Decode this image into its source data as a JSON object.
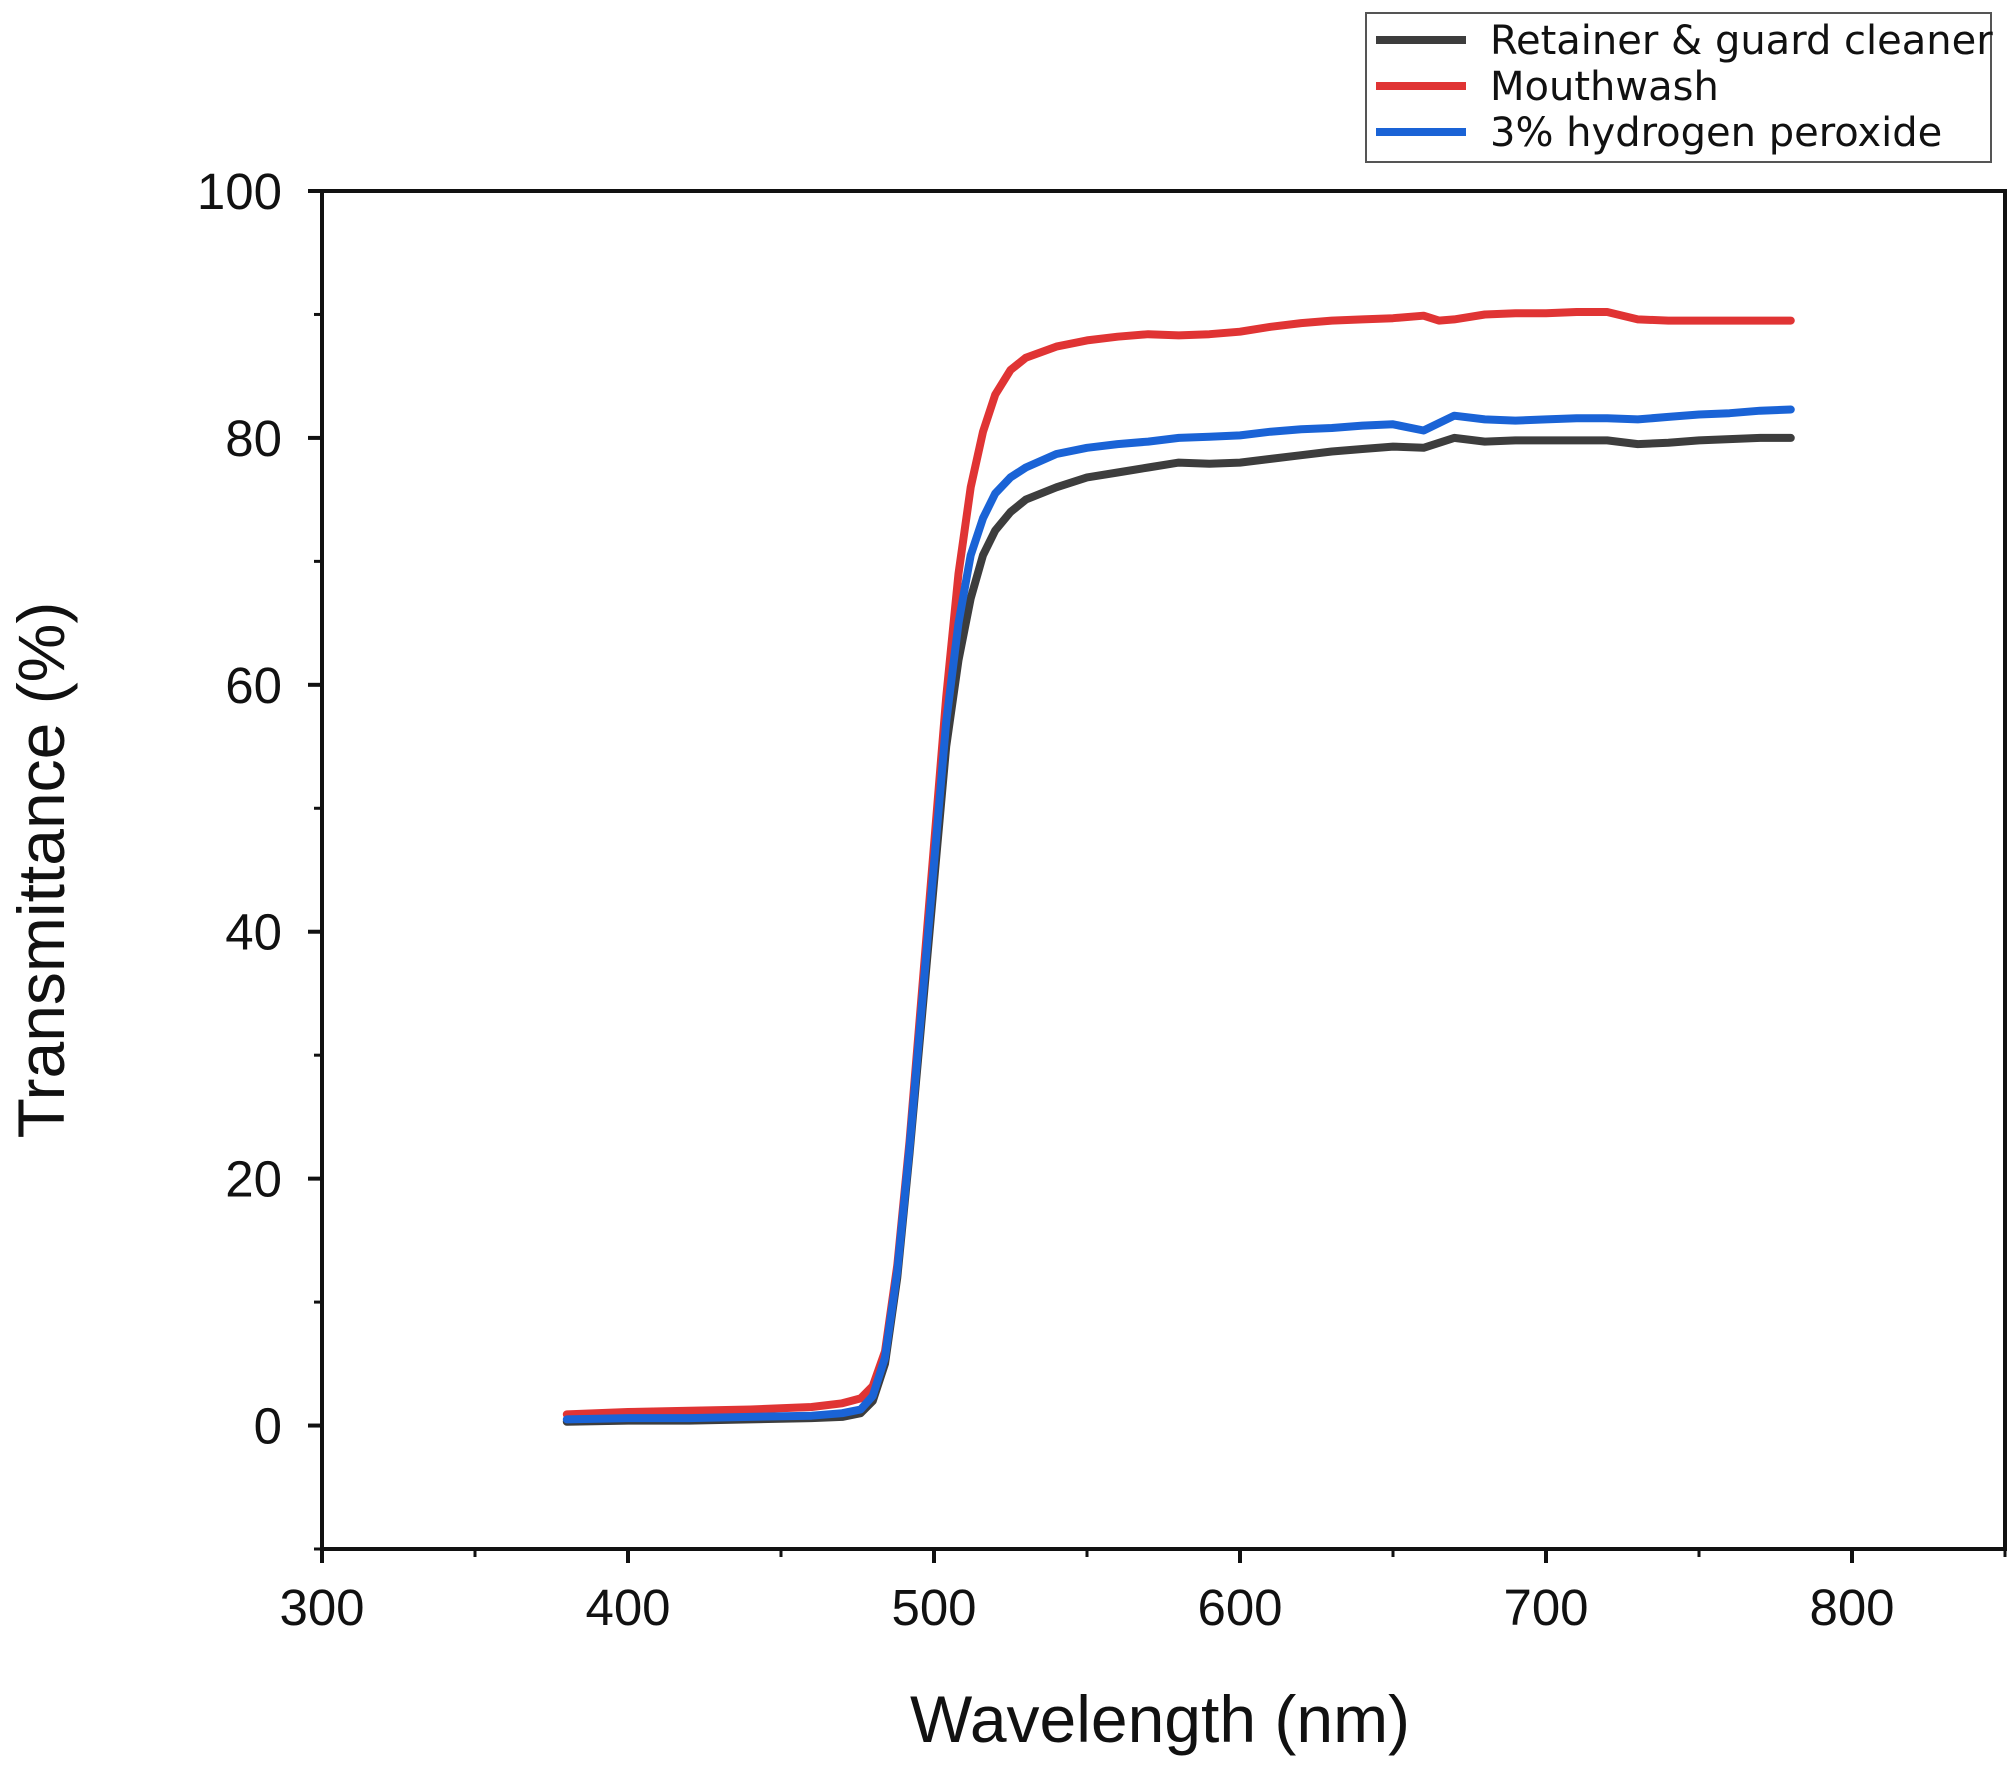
{
  "chart_data": {
    "type": "line",
    "xlabel": "Wavelength (nm)",
    "ylabel": "Transmittance (%)",
    "xlim": [
      300,
      850
    ],
    "ylim": [
      -10,
      100
    ],
    "x_ticks": [
      "300",
      "400",
      "500",
      "600",
      "700",
      "800"
    ],
    "y_ticks": [
      "0",
      "20",
      "40",
      "60",
      "80",
      "100"
    ],
    "grid": false,
    "legend_position": "top-right",
    "series": [
      {
        "name": "Retainer & guard cleaner",
        "color": "#3d3d3d",
        "points": [
          [
            380,
            0.3
          ],
          [
            400,
            0.4
          ],
          [
            420,
            0.4
          ],
          [
            440,
            0.5
          ],
          [
            460,
            0.6
          ],
          [
            470,
            0.7
          ],
          [
            476,
            1.0
          ],
          [
            480,
            2.0
          ],
          [
            484,
            5.0
          ],
          [
            488,
            12.0
          ],
          [
            492,
            22.0
          ],
          [
            496,
            33.0
          ],
          [
            500,
            44.0
          ],
          [
            504,
            55.0
          ],
          [
            508,
            62.0
          ],
          [
            512,
            67.0
          ],
          [
            516,
            70.5
          ],
          [
            520,
            72.5
          ],
          [
            525,
            74.0
          ],
          [
            530,
            75.0
          ],
          [
            540,
            76.0
          ],
          [
            550,
            76.8
          ],
          [
            560,
            77.2
          ],
          [
            570,
            77.6
          ],
          [
            580,
            78.0
          ],
          [
            590,
            77.9
          ],
          [
            600,
            78.0
          ],
          [
            610,
            78.3
          ],
          [
            620,
            78.6
          ],
          [
            630,
            78.9
          ],
          [
            640,
            79.1
          ],
          [
            650,
            79.3
          ],
          [
            660,
            79.2
          ],
          [
            670,
            80.0
          ],
          [
            680,
            79.7
          ],
          [
            690,
            79.8
          ],
          [
            700,
            79.8
          ],
          [
            710,
            79.8
          ],
          [
            720,
            79.8
          ],
          [
            730,
            79.5
          ],
          [
            740,
            79.6
          ],
          [
            750,
            79.8
          ],
          [
            760,
            79.9
          ],
          [
            770,
            80.0
          ],
          [
            780,
            80.0
          ]
        ]
      },
      {
        "name": "Mouthwash",
        "color": "#e03434",
        "points": [
          [
            380,
            0.9
          ],
          [
            400,
            1.1
          ],
          [
            420,
            1.2
          ],
          [
            440,
            1.3
          ],
          [
            460,
            1.5
          ],
          [
            470,
            1.8
          ],
          [
            476,
            2.2
          ],
          [
            480,
            3.2
          ],
          [
            484,
            6.0
          ],
          [
            488,
            13.0
          ],
          [
            492,
            23.0
          ],
          [
            496,
            35.0
          ],
          [
            500,
            47.0
          ],
          [
            504,
            59.0
          ],
          [
            508,
            69.0
          ],
          [
            512,
            76.0
          ],
          [
            516,
            80.5
          ],
          [
            520,
            83.5
          ],
          [
            525,
            85.5
          ],
          [
            530,
            86.5
          ],
          [
            540,
            87.4
          ],
          [
            550,
            87.9
          ],
          [
            560,
            88.2
          ],
          [
            570,
            88.4
          ],
          [
            580,
            88.3
          ],
          [
            590,
            88.4
          ],
          [
            600,
            88.6
          ],
          [
            610,
            89.0
          ],
          [
            620,
            89.3
          ],
          [
            630,
            89.5
          ],
          [
            640,
            89.6
          ],
          [
            650,
            89.7
          ],
          [
            660,
            89.9
          ],
          [
            665,
            89.5
          ],
          [
            670,
            89.6
          ],
          [
            680,
            90.0
          ],
          [
            690,
            90.1
          ],
          [
            700,
            90.1
          ],
          [
            710,
            90.2
          ],
          [
            720,
            90.2
          ],
          [
            730,
            89.6
          ],
          [
            740,
            89.5
          ],
          [
            750,
            89.5
          ],
          [
            760,
            89.5
          ],
          [
            770,
            89.5
          ],
          [
            780,
            89.5
          ]
        ]
      },
      {
        "name": "3% hydrogen peroxide",
        "color": "#1a63d6",
        "points": [
          [
            380,
            0.5
          ],
          [
            400,
            0.6
          ],
          [
            420,
            0.6
          ],
          [
            440,
            0.7
          ],
          [
            460,
            0.8
          ],
          [
            470,
            1.0
          ],
          [
            476,
            1.3
          ],
          [
            480,
            2.4
          ],
          [
            484,
            5.5
          ],
          [
            488,
            12.5
          ],
          [
            492,
            22.5
          ],
          [
            496,
            34.0
          ],
          [
            500,
            45.5
          ],
          [
            504,
            57.0
          ],
          [
            508,
            65.0
          ],
          [
            512,
            70.5
          ],
          [
            516,
            73.5
          ],
          [
            520,
            75.5
          ],
          [
            525,
            76.8
          ],
          [
            530,
            77.6
          ],
          [
            540,
            78.7
          ],
          [
            550,
            79.2
          ],
          [
            560,
            79.5
          ],
          [
            570,
            79.7
          ],
          [
            580,
            80.0
          ],
          [
            590,
            80.1
          ],
          [
            600,
            80.2
          ],
          [
            610,
            80.5
          ],
          [
            620,
            80.7
          ],
          [
            630,
            80.8
          ],
          [
            640,
            81.0
          ],
          [
            650,
            81.1
          ],
          [
            660,
            80.6
          ],
          [
            670,
            81.8
          ],
          [
            680,
            81.5
          ],
          [
            690,
            81.4
          ],
          [
            700,
            81.5
          ],
          [
            710,
            81.6
          ],
          [
            720,
            81.6
          ],
          [
            730,
            81.5
          ],
          [
            740,
            81.7
          ],
          [
            750,
            81.9
          ],
          [
            760,
            82.0
          ],
          [
            770,
            82.2
          ],
          [
            780,
            82.3
          ]
        ]
      }
    ]
  }
}
